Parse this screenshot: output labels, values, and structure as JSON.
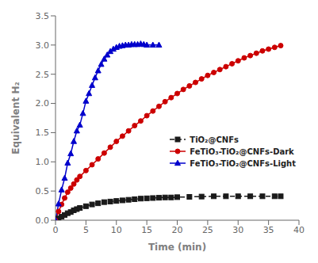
{
  "chart_data": {
    "type": "line",
    "xlabel": "Time (min)",
    "ylabel": "Equivalent H₂",
    "xlim": [
      0,
      40
    ],
    "ylim": [
      0,
      3.5
    ],
    "xticks": [
      0,
      5,
      10,
      15,
      20,
      25,
      30,
      35,
      40
    ],
    "yticks": [
      {
        "value": 0,
        "label": "0.0"
      },
      {
        "value": 0.5,
        "label": "0.5"
      },
      {
        "value": 1,
        "label": "1.0"
      },
      {
        "value": 1.5,
        "label": "1.5"
      },
      {
        "value": 2,
        "label": "2.0"
      },
      {
        "value": 2.5,
        "label": "2.5"
      },
      {
        "value": 3,
        "label": "3.0"
      },
      {
        "value": 3.5,
        "label": "3.5"
      }
    ],
    "grid": false,
    "legend": "lower right",
    "series": [
      {
        "name": "TiO₂@CNFs",
        "color": "#1a1a1a",
        "marker": "square",
        "line_style": "dashed",
        "x": [
          0,
          0.5,
          1,
          1.5,
          2,
          2.5,
          3,
          3.5,
          4,
          5,
          6,
          7,
          8,
          9,
          10,
          11,
          12,
          13,
          14,
          15,
          16,
          17,
          18,
          19,
          20,
          22,
          24,
          26,
          28,
          30,
          32,
          34,
          36,
          37
        ],
        "values": [
          0,
          0.03,
          0.06,
          0.09,
          0.12,
          0.14,
          0.17,
          0.19,
          0.21,
          0.24,
          0.27,
          0.29,
          0.31,
          0.32,
          0.33,
          0.34,
          0.35,
          0.36,
          0.37,
          0.375,
          0.38,
          0.385,
          0.39,
          0.39,
          0.395,
          0.4,
          0.405,
          0.41,
          0.41,
          0.41,
          0.41,
          0.41,
          0.41,
          0.41
        ]
      },
      {
        "name": "FeTiO₃-TiO₂@CNFs-Dark",
        "color": "#cc0000",
        "marker": "circle",
        "line_style": "solid",
        "x": [
          0,
          0.5,
          1,
          1.5,
          2,
          2.5,
          3,
          3.5,
          4,
          5,
          6,
          7,
          8,
          9,
          10,
          11,
          12,
          13,
          14,
          15,
          16,
          17,
          18,
          19,
          20,
          21,
          22,
          23,
          24,
          25,
          26,
          27,
          28,
          29,
          30,
          31,
          32,
          33,
          34,
          35,
          36,
          37
        ],
        "values": [
          0,
          0.15,
          0.27,
          0.38,
          0.48,
          0.55,
          0.62,
          0.69,
          0.75,
          0.85,
          0.95,
          1.05,
          1.15,
          1.25,
          1.35,
          1.44,
          1.53,
          1.62,
          1.7,
          1.79,
          1.87,
          1.95,
          2.03,
          2.1,
          2.17,
          2.24,
          2.3,
          2.36,
          2.42,
          2.48,
          2.53,
          2.58,
          2.63,
          2.68,
          2.73,
          2.78,
          2.82,
          2.86,
          2.9,
          2.93,
          2.96,
          2.99
        ]
      },
      {
        "name": "FeTiO₃-TiO₂@CNFs-Light",
        "color": "#0000cc",
        "marker": "triangle",
        "line_style": "solid",
        "x": [
          0,
          0.5,
          1,
          1.5,
          2,
          2.5,
          3,
          3.5,
          4,
          4.5,
          5,
          5.5,
          6,
          6.5,
          7,
          7.5,
          8,
          8.5,
          9,
          9.5,
          10,
          10.5,
          11,
          11.5,
          12,
          12.5,
          13,
          13.5,
          14,
          14.5,
          15,
          16,
          17
        ],
        "values": [
          0,
          0.28,
          0.52,
          0.72,
          0.98,
          1.14,
          1.35,
          1.53,
          1.63,
          1.83,
          2.04,
          2.17,
          2.31,
          2.44,
          2.56,
          2.67,
          2.76,
          2.83,
          2.89,
          2.93,
          2.96,
          2.98,
          2.99,
          3.0,
          3.0,
          3.01,
          3.01,
          3.01,
          3.02,
          3.01,
          3.0,
          3.0,
          3.0
        ]
      }
    ]
  }
}
